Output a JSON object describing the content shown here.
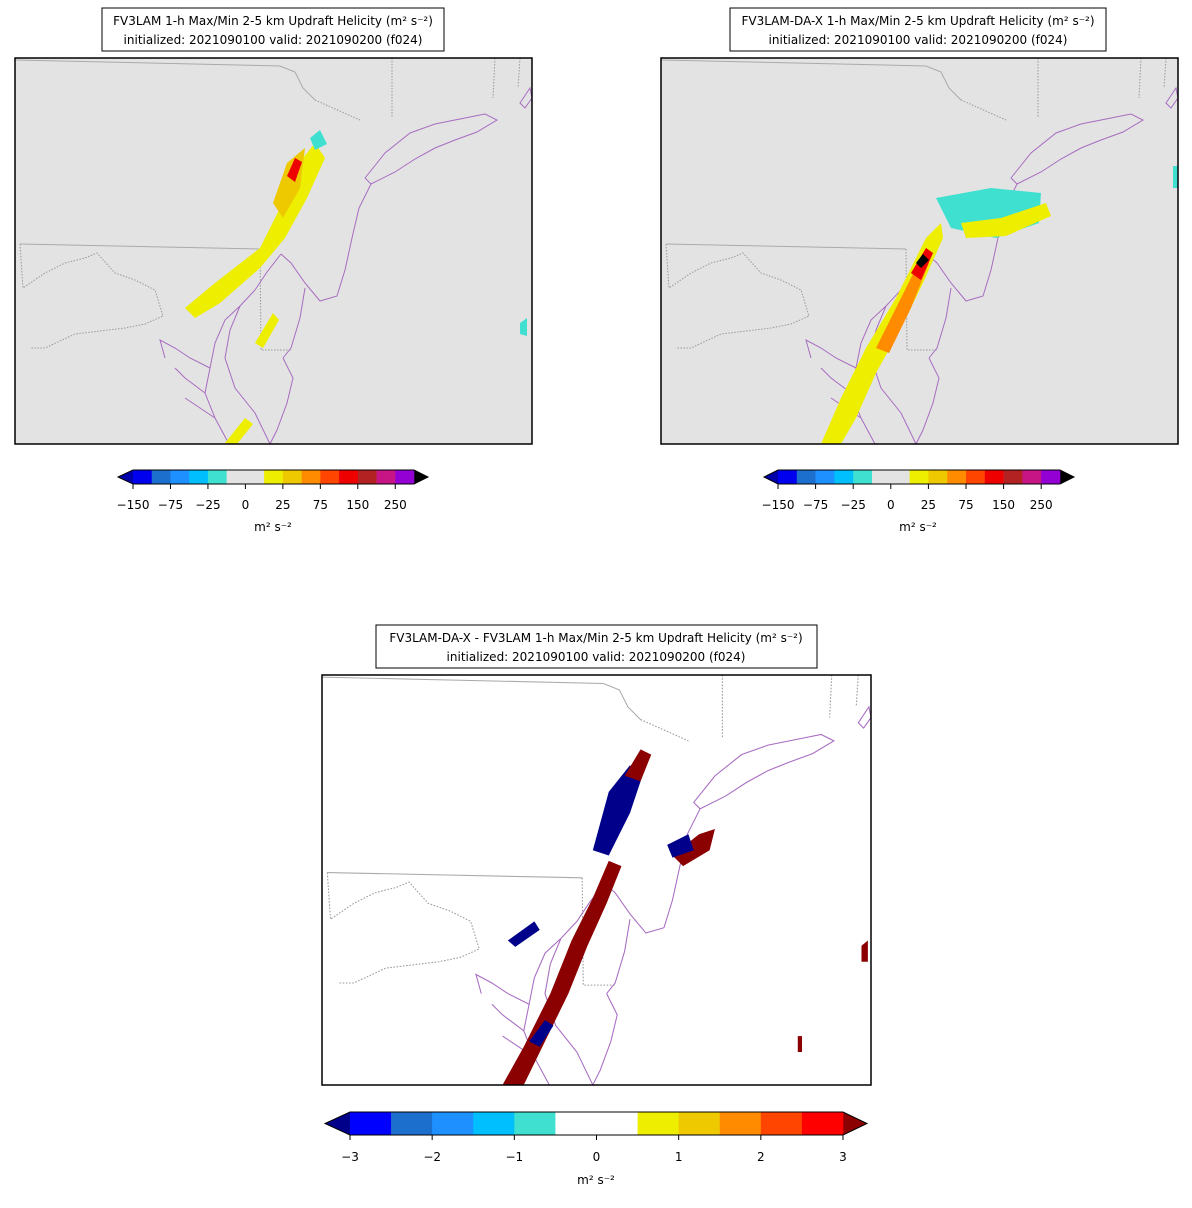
{
  "panels": [
    {
      "title": "FV3LAM 1-h Max/Min 2-5 km Updraft Helicity (m² s⁻²)",
      "subtitle": "initialized: 2021090100 valid: 2021090200 (f024)",
      "colorbar": {
        "levels": [
          -150,
          -100,
          -75,
          -50,
          -25,
          -10,
          0,
          10,
          25,
          50,
          75,
          100,
          150,
          200,
          250,
          300
        ],
        "colors": [
          "#0000ee",
          "#1c6fcc",
          "#1e90ff",
          "#00bfff",
          "#40e0d0",
          "#e3e3e3",
          "#e3e3e3",
          "#eeee00",
          "#eec900",
          "#ff8c00",
          "#ff4500",
          "#ee0000",
          "#b22222",
          "#c71585",
          "#9400d3"
        ],
        "under_color": "#0000aa",
        "over_color": "#000000",
        "ticks": [
          {
            "value": -150,
            "label": "−150"
          },
          {
            "value": -75,
            "label": "−75"
          },
          {
            "value": -25,
            "label": "−25"
          },
          0,
          25,
          75,
          150,
          250
        ],
        "label": "m² s⁻²"
      }
    },
    {
      "title": "FV3LAM-DA-X 1-h Max/Min 2-5 km Updraft Helicity (m² s⁻²)",
      "subtitle": "initialized: 2021090100 valid: 2021090200 (f024)",
      "colorbar": {
        "levels": [
          -150,
          -100,
          -75,
          -50,
          -25,
          -10,
          0,
          10,
          25,
          50,
          75,
          100,
          150,
          200,
          250,
          300
        ],
        "colors": [
          "#0000ee",
          "#1c6fcc",
          "#1e90ff",
          "#00bfff",
          "#40e0d0",
          "#e3e3e3",
          "#e3e3e3",
          "#eeee00",
          "#eec900",
          "#ff8c00",
          "#ff4500",
          "#ee0000",
          "#b22222",
          "#c71585",
          "#9400d3"
        ],
        "under_color": "#0000aa",
        "over_color": "#000000",
        "ticks": [
          {
            "value": -150,
            "label": "−150"
          },
          {
            "value": -75,
            "label": "−75"
          },
          {
            "value": -25,
            "label": "−25"
          },
          0,
          25,
          75,
          150,
          250
        ],
        "label": "m² s⁻²"
      }
    },
    {
      "title": "FV3LAM-DA-X - FV3LAM 1-h Max/Min 2-5 km Updraft Helicity (m² s⁻²)",
      "subtitle": "initialized: 2021090100 valid: 2021090200 (f024)",
      "colorbar": {
        "levels": [
          -3,
          -2.5,
          -2,
          -1.5,
          -1,
          -0.5,
          0,
          0.5,
          1,
          1.5,
          2,
          2.5,
          3
        ],
        "colors": [
          "#0000ff",
          "#1c6fcc",
          "#1e90ff",
          "#00bfff",
          "#40e0d0",
          "#ffffff",
          "#ffffff",
          "#eeee00",
          "#eec900",
          "#ff8c00",
          "#ff4500",
          "#ff0000"
        ],
        "under_color": "#00008b",
        "over_color": "#8b0000",
        "ticks": [
          {
            "value": -3,
            "label": "−3"
          },
          {
            "value": -2,
            "label": "−2"
          },
          {
            "value": -1,
            "label": "−1"
          },
          0,
          1,
          2,
          3
        ],
        "label": "m² s⁻²"
      }
    }
  ]
}
